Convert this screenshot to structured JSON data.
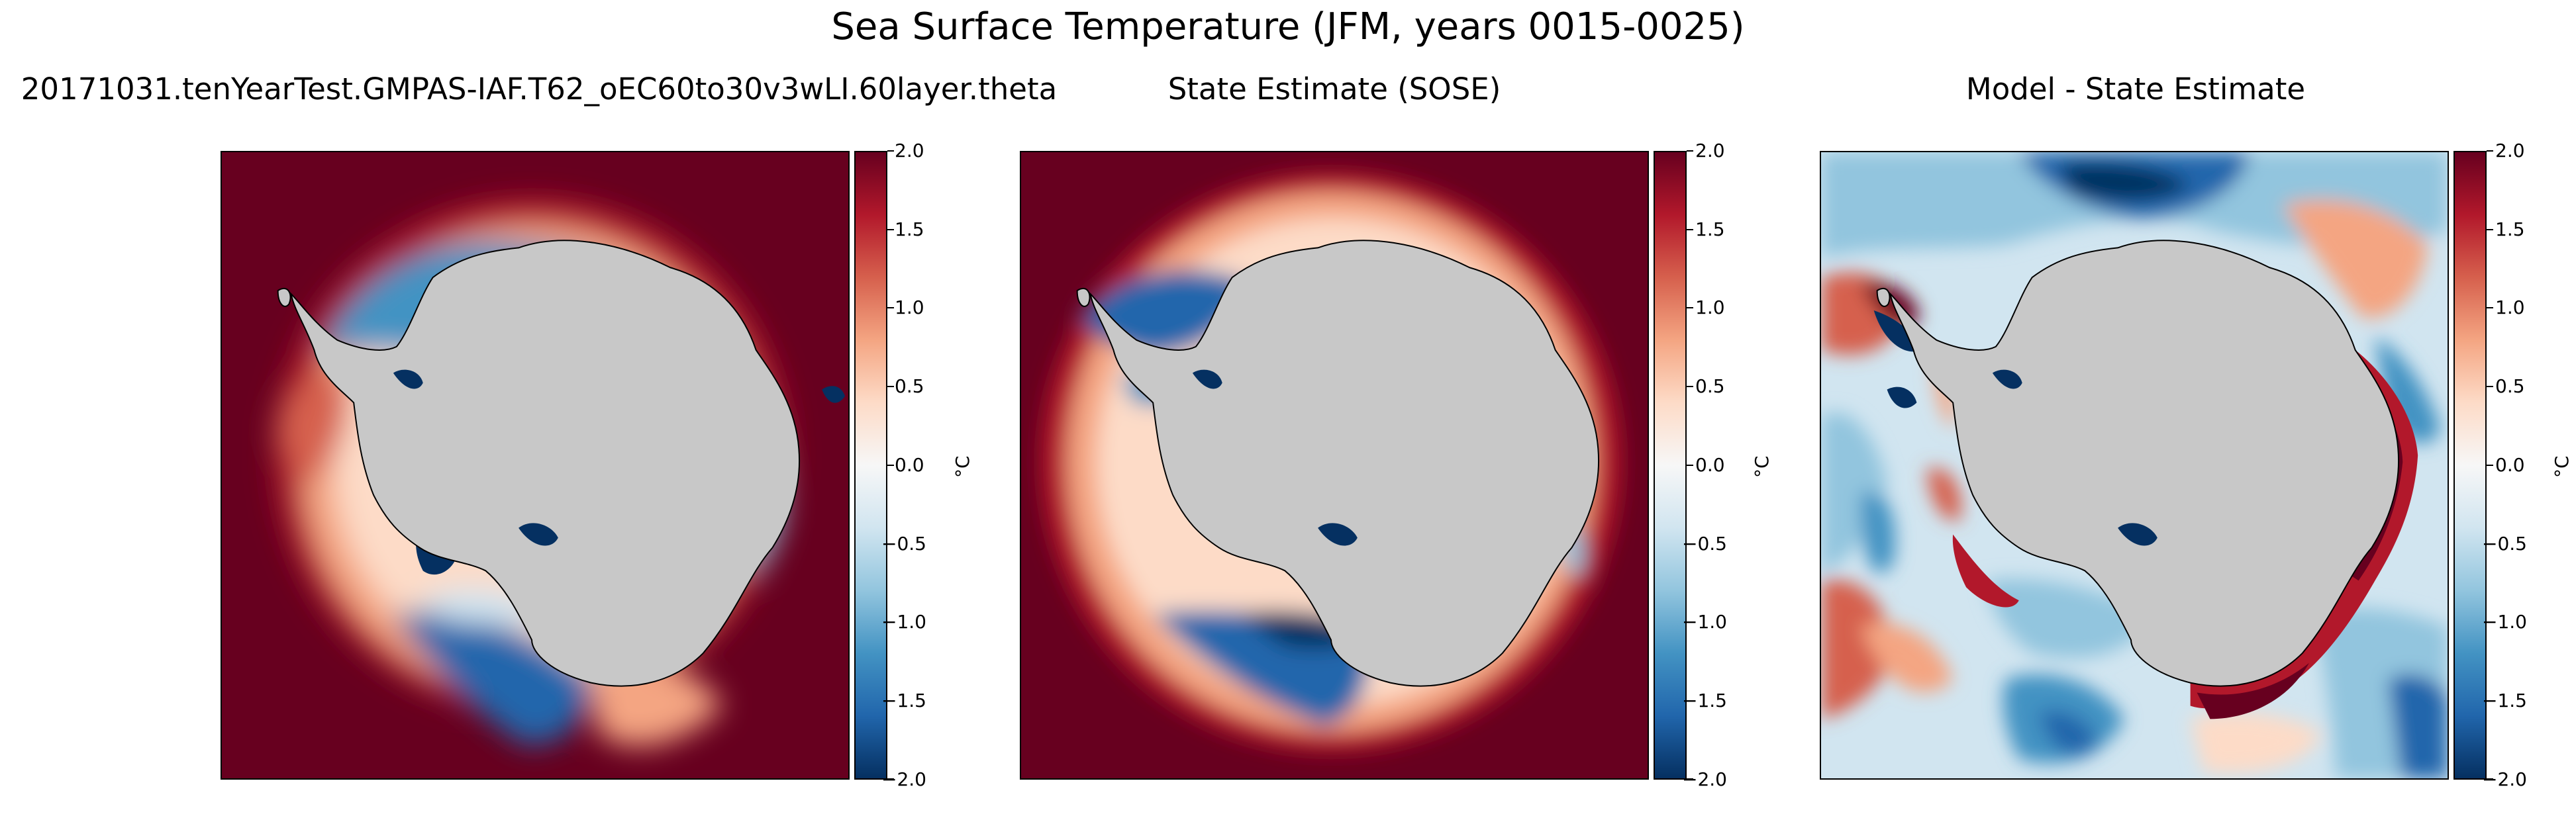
{
  "figure_title": "Sea Surface Temperature (JFM, years 0015-0025)",
  "colors": {
    "land": "#c8c8c8",
    "colormap": [
      "#053061",
      "#2166ac",
      "#4393c3",
      "#92c5de",
      "#d1e5f0",
      "#f7f7f7",
      "#fddbc7",
      "#f4a582",
      "#d6604d",
      "#b2182b",
      "#67001f"
    ]
  },
  "chart_data": [
    {
      "type": "heatmap",
      "title": "20171031.tenYearTest.GMPAS-IAF.T62_oEC60to30v3wLI.60layer.theta",
      "projection": "south-polar-stereographic",
      "colormap": "RdBu_r",
      "colorbar": {
        "label": "°C",
        "vmin": -2.0,
        "vmax": 2.0,
        "ticks": [
          "2.0",
          "1.5",
          "1.0",
          "0.5",
          "0.0",
          "−0.5",
          "−1.0",
          "−1.5",
          "−2.0"
        ]
      }
    },
    {
      "type": "heatmap",
      "title": "State Estimate (SOSE)",
      "projection": "south-polar-stereographic",
      "colormap": "RdBu_r",
      "colorbar": {
        "label": "°C",
        "vmin": -2.0,
        "vmax": 2.0,
        "ticks": [
          "2.0",
          "1.5",
          "1.0",
          "0.5",
          "0.0",
          "−0.5",
          "−1.0",
          "−1.5",
          "−2.0"
        ]
      }
    },
    {
      "type": "heatmap",
      "title": "Model - State Estimate",
      "projection": "south-polar-stereographic",
      "colormap": "RdBu_r",
      "colorbar": {
        "label": "°C",
        "vmin": -2.0,
        "vmax": 2.0,
        "ticks": [
          "2.0",
          "1.5",
          "1.0",
          "0.5",
          "0.0",
          "−0.5",
          "−1.0",
          "−1.5",
          "−2.0"
        ]
      }
    }
  ]
}
